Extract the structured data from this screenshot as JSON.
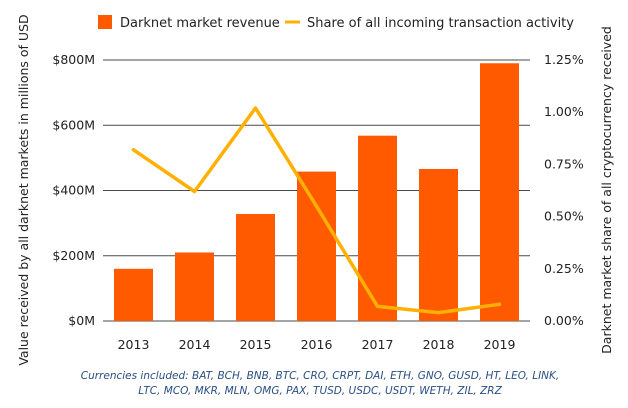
{
  "chart_data": {
    "type": "bar+line",
    "categories": [
      "2013",
      "2014",
      "2015",
      "2016",
      "2017",
      "2018",
      "2019"
    ],
    "series": [
      {
        "name": "Darknet market revenue",
        "type": "bar",
        "axis": "left",
        "color": "#FF5A00",
        "values": [
          160,
          210,
          328,
          458,
          568,
          466,
          790
        ]
      },
      {
        "name": "Share of all incoming transaction activity",
        "type": "line",
        "axis": "right",
        "color": "#FFB000",
        "values": [
          0.82,
          0.62,
          1.02,
          0.55,
          0.07,
          0.04,
          0.08
        ]
      }
    ],
    "ylabel": "Value received by all darknet markets in millions of USD",
    "y2label": "Darknet market share of all cryptocurrency received",
    "ylim": [
      0,
      800
    ],
    "y2lim": [
      0,
      1.25
    ],
    "yticks": [
      "$0M",
      "$200M",
      "$400M",
      "$600M",
      "$800M"
    ],
    "y2ticks": [
      "0.00%",
      "0.25%",
      "0.50%",
      "0.75%",
      "1.00%",
      "1.25%"
    ],
    "grid": true,
    "legend": "top"
  },
  "note": {
    "line1": "Currencies included: BAT, BCH, BNB, BTC, CRO, CRPT, DAI, ETH, GNO, GUSD, HT, LEO, LINK,",
    "line2": "LTC, MCO, MKR, MLN, OMG, PAX, TUSD, USDC, USDT, WETH, ZIL, ZRZ"
  }
}
